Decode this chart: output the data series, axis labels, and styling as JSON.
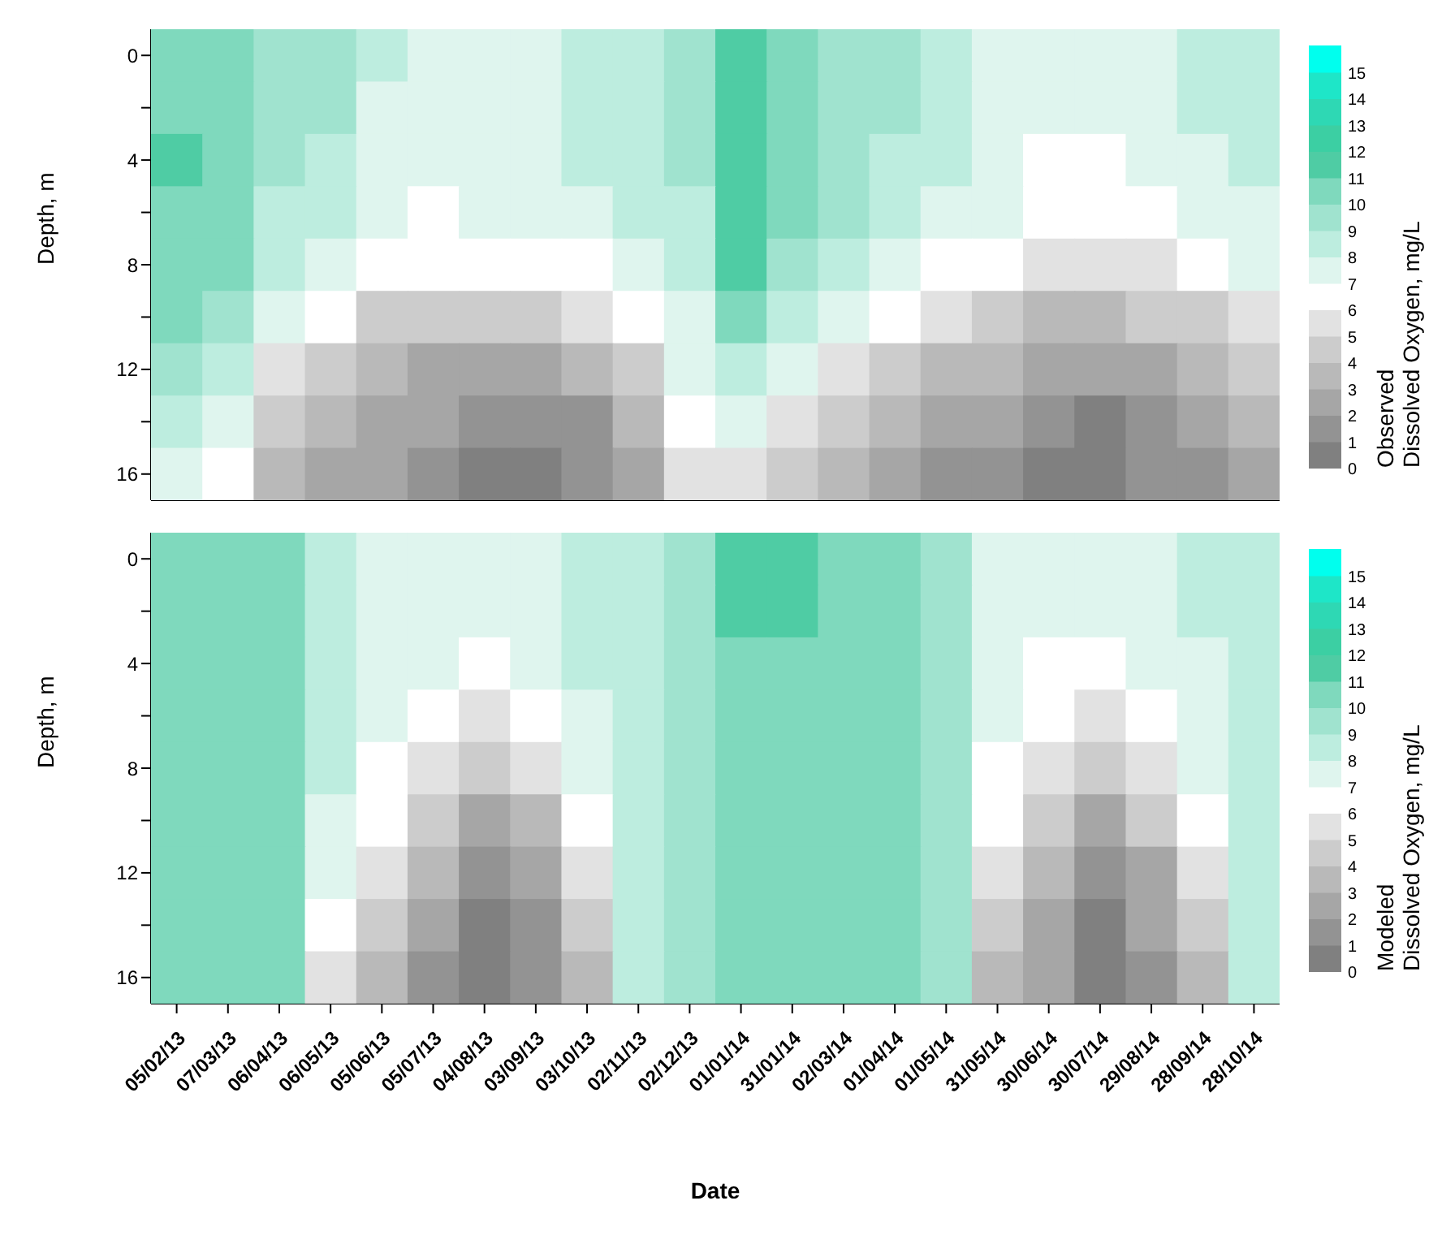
{
  "chart_data": [
    {
      "type": "heatmap",
      "ylabel": "Depth, m",
      "clabel": "Observed\nDissolved Oxygen, mg/L",
      "tick_labels": "y",
      "categories": [
        null,
        null,
        null,
        null,
        null,
        null,
        null,
        null,
        null,
        null,
        null,
        null,
        null,
        null,
        null,
        null,
        null,
        null,
        null,
        null,
        null,
        null
      ],
      "y_categories": [
        "0",
        null,
        "4",
        null,
        "8",
        null,
        "12",
        null,
        "16"
      ],
      "clim": [
        0,
        16
      ],
      "cticks": [
        0,
        1,
        2,
        3,
        4,
        5,
        6,
        7,
        8,
        9,
        10,
        11,
        12,
        13,
        14,
        15
      ],
      "colors": [
        "#808080",
        "#939393",
        "#a6a6a6",
        "#b9b9b9",
        "#cccccc",
        "#e2e2e2",
        "#ffffff",
        "#dff5ee",
        "#bdeddf",
        "#a0e3cf",
        "#7fd9bd",
        "#4fcca4",
        "#3ccfa3",
        "#2ed8b4",
        "#1ee6c8",
        "#00ffee"
      ],
      "cells": [
        [
          10,
          10,
          9,
          9,
          8,
          7,
          7,
          7,
          8,
          8,
          9,
          11,
          10,
          9,
          9,
          8,
          7,
          7,
          7,
          7,
          8,
          8
        ],
        [
          10,
          10,
          9,
          9,
          7,
          7,
          7,
          7,
          8,
          8,
          9,
          11,
          10,
          9,
          9,
          8,
          7,
          7,
          7,
          7,
          8,
          8
        ],
        [
          11,
          10,
          9,
          8,
          7,
          7,
          7,
          7,
          8,
          8,
          9,
          11,
          10,
          9,
          8,
          8,
          7,
          6,
          6,
          7,
          7,
          8
        ],
        [
          10,
          10,
          8,
          8,
          7,
          6,
          7,
          7,
          7,
          8,
          8,
          11,
          10,
          9,
          8,
          7,
          7,
          6,
          6,
          6,
          7,
          7
        ],
        [
          10,
          10,
          8,
          7,
          6,
          6,
          6,
          6,
          6,
          7,
          8,
          11,
          9,
          8,
          7,
          6,
          6,
          5,
          5,
          5,
          6,
          7
        ],
        [
          10,
          9,
          7,
          6,
          4,
          4,
          4,
          4,
          5,
          6,
          7,
          10,
          8,
          7,
          6,
          5,
          4,
          3,
          3,
          4,
          4,
          5
        ],
        [
          9,
          8,
          5,
          4,
          3,
          2,
          2,
          2,
          3,
          4,
          7,
          8,
          7,
          5,
          4,
          3,
          3,
          2,
          2,
          2,
          3,
          4
        ],
        [
          8,
          7,
          4,
          3,
          2,
          2,
          1,
          1,
          1,
          3,
          6,
          7,
          5,
          4,
          3,
          2,
          2,
          1,
          0,
          1,
          2,
          3
        ],
        [
          7,
          6,
          3,
          2,
          2,
          1,
          0,
          0,
          1,
          2,
          5,
          5,
          4,
          3,
          2,
          1,
          1,
          0,
          0,
          1,
          1,
          2
        ]
      ]
    },
    {
      "type": "heatmap",
      "xlabel": "Date",
      "ylabel": "Depth, m",
      "clabel": "Modeled\nDissolved Oxygen, mg/L",
      "categories": [
        "05/02/13",
        "07/03/13",
        "06/04/13",
        "06/05/13",
        "05/06/13",
        "05/07/13",
        "04/08/13",
        "03/09/13",
        "03/10/13",
        "02/11/13",
        "02/12/13",
        "01/01/14",
        "31/01/14",
        "02/03/14",
        "01/04/14",
        "01/05/14",
        "31/05/14",
        "30/06/14",
        "30/07/14",
        "29/08/14",
        "28/09/14",
        "28/10/14"
      ],
      "y_categories": [
        "0",
        null,
        "4",
        null,
        "8",
        null,
        "12",
        null,
        "16"
      ],
      "clim": [
        0,
        16
      ],
      "cticks": [
        0,
        1,
        2,
        3,
        4,
        5,
        6,
        7,
        8,
        9,
        10,
        11,
        12,
        13,
        14,
        15
      ],
      "colors": [
        "#808080",
        "#939393",
        "#a6a6a6",
        "#b9b9b9",
        "#cccccc",
        "#e2e2e2",
        "#ffffff",
        "#dff5ee",
        "#bdeddf",
        "#a0e3cf",
        "#7fd9bd",
        "#4fcca4",
        "#3ccfa3",
        "#2ed8b4",
        "#1ee6c8",
        "#00ffee"
      ],
      "cells": [
        [
          10,
          10,
          10,
          8,
          7,
          7,
          7,
          7,
          8,
          8,
          9,
          11,
          11,
          10,
          10,
          9,
          7,
          7,
          7,
          7,
          8,
          8
        ],
        [
          10,
          10,
          10,
          8,
          7,
          7,
          7,
          7,
          8,
          8,
          9,
          11,
          11,
          10,
          10,
          9,
          7,
          7,
          7,
          7,
          8,
          8
        ],
        [
          10,
          10,
          10,
          8,
          7,
          7,
          6,
          7,
          8,
          8,
          9,
          10,
          10,
          10,
          10,
          9,
          7,
          6,
          6,
          7,
          7,
          8
        ],
        [
          10,
          10,
          10,
          8,
          7,
          6,
          5,
          6,
          7,
          8,
          9,
          10,
          10,
          10,
          10,
          9,
          7,
          6,
          5,
          6,
          7,
          8
        ],
        [
          10,
          10,
          10,
          8,
          6,
          5,
          4,
          5,
          7,
          8,
          9,
          10,
          10,
          10,
          10,
          9,
          6,
          5,
          4,
          5,
          7,
          8
        ],
        [
          10,
          10,
          10,
          7,
          6,
          4,
          2,
          3,
          6,
          8,
          9,
          10,
          10,
          10,
          10,
          9,
          6,
          4,
          2,
          4,
          6,
          8
        ],
        [
          10,
          10,
          10,
          7,
          5,
          3,
          1,
          2,
          5,
          8,
          9,
          10,
          10,
          10,
          10,
          9,
          5,
          3,
          1,
          2,
          5,
          8
        ],
        [
          10,
          10,
          10,
          6,
          4,
          2,
          0,
          1,
          4,
          8,
          9,
          10,
          10,
          10,
          10,
          9,
          4,
          2,
          0,
          2,
          4,
          8
        ],
        [
          10,
          10,
          10,
          5,
          3,
          1,
          0,
          1,
          3,
          8,
          9,
          10,
          10,
          10,
          10,
          9,
          3,
          2,
          0,
          1,
          3,
          8
        ]
      ]
    }
  ]
}
